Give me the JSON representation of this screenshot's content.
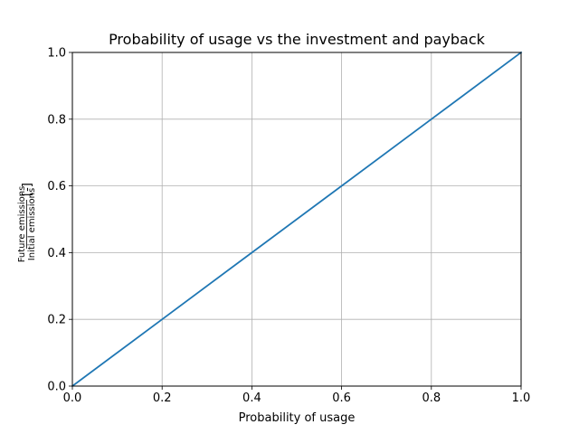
{
  "chart_data": {
    "type": "line",
    "title": "Probability of usage vs the investment and payback",
    "xlabel": "Probability of usage",
    "ylabel": {
      "numerator": "Future emissions",
      "denominator": "Initial emissions",
      "unit": "[-]"
    },
    "xlim": [
      0.0,
      1.0
    ],
    "ylim": [
      0.0,
      1.0
    ],
    "xticks": [
      0.0,
      0.2,
      0.4,
      0.6,
      0.8,
      1.0
    ],
    "yticks": [
      0.0,
      0.2,
      0.4,
      0.6,
      0.8,
      1.0
    ],
    "xtick_labels": [
      "0.0",
      "0.2",
      "0.4",
      "0.6",
      "0.8",
      "1.0"
    ],
    "ytick_labels": [
      "0.0",
      "0.2",
      "0.4",
      "0.6",
      "0.8",
      "1.0"
    ],
    "grid": true,
    "series": [
      {
        "x": [
          0.0,
          0.2,
          0.4,
          0.6,
          0.8,
          1.0
        ],
        "y": [
          0.0,
          0.2,
          0.4,
          0.6,
          0.8,
          1.0
        ],
        "color": "#1f77b4"
      }
    ]
  }
}
